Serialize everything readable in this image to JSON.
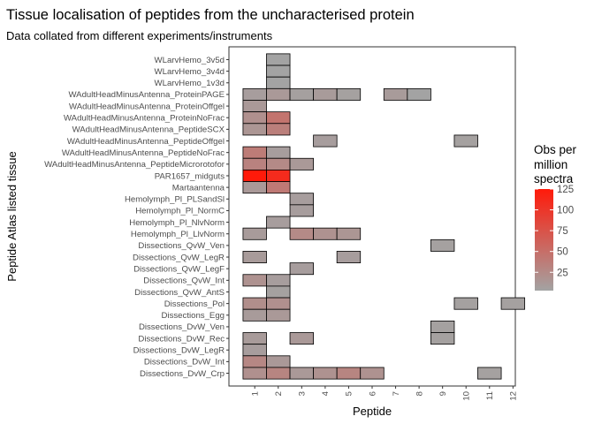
{
  "chart_data": {
    "type": "heatmap",
    "title": "Tissue localisation of peptides from the uncharacterised protein",
    "subtitle": "Data collated from different experiments/instruments",
    "xlabel": "Peptide",
    "ylabel": "Peptide Atlas listed tissue",
    "x_categories": [
      "1",
      "2",
      "3",
      "4",
      "5",
      "6",
      "7",
      "8",
      "9",
      "10",
      "11",
      "12"
    ],
    "y_categories": [
      "WLarvHemo_3v5d",
      "WLarvHemo_3v4d",
      "WLarvHemo_1v3d",
      "WAdultHeadMinusAntenna_ProteinPAGE",
      "WAdultHeadMinusAntenna_ProteinOffgel",
      "WAdultHeadMinusAntenna_ProteinNoFrac",
      "WAdultHeadMinusAntenna_PeptideSCX",
      "WAdultHeadMinusAntenna_PeptideOffgel",
      "WAdultHeadMinusAntenna_PeptideNoFrac",
      "WAdultHeadMinusAntenna_PeptideMicrorotofor",
      "PAR1657_midguts",
      "Martaantenna",
      "Hemolymph_Pl_PLSandSl",
      "Hemolymph_Pl_NormC",
      "Hemolymph_Pl_NlvNorm",
      "Hemolymph_Pl_LlvNorm",
      "Dissections_QvW_Ven",
      "Dissections_QvW_LegR",
      "Dissections_QvW_LegF",
      "Dissections_QvW_Int",
      "Dissections_QvW_AntS",
      "Dissections_Pol",
      "Dissections_Egg",
      "Dissections_DvW_Ven",
      "Dissections_DvW_Rec",
      "Dissections_DvW_LegR",
      "Dissections_DvW_Int",
      "Dissections_DvW_Crp"
    ],
    "cells": [
      {
        "tissue": "WLarvHemo_3v5d",
        "peptide": "2",
        "value": 3
      },
      {
        "tissue": "WLarvHemo_3v4d",
        "peptide": "2",
        "value": 3
      },
      {
        "tissue": "WLarvHemo_1v3d",
        "peptide": "2",
        "value": 3
      },
      {
        "tissue": "WAdultHeadMinusAntenna_ProteinPAGE",
        "peptide": "1",
        "value": 8
      },
      {
        "tissue": "WAdultHeadMinusAntenna_ProteinPAGE",
        "peptide": "2",
        "value": 12
      },
      {
        "tissue": "WAdultHeadMinusAntenna_ProteinPAGE",
        "peptide": "3",
        "value": 6
      },
      {
        "tissue": "WAdultHeadMinusAntenna_ProteinPAGE",
        "peptide": "4",
        "value": 10
      },
      {
        "tissue": "WAdultHeadMinusAntenna_ProteinPAGE",
        "peptide": "5",
        "value": 5
      },
      {
        "tissue": "WAdultHeadMinusAntenna_ProteinPAGE",
        "peptide": "7",
        "value": 10
      },
      {
        "tissue": "WAdultHeadMinusAntenna_ProteinPAGE",
        "peptide": "8",
        "value": 3
      },
      {
        "tissue": "WAdultHeadMinusAntenna_ProteinOffgel",
        "peptide": "1",
        "value": 12
      },
      {
        "tissue": "WAdultHeadMinusAntenna_ProteinNoFrac",
        "peptide": "1",
        "value": 20
      },
      {
        "tissue": "WAdultHeadMinusAntenna_ProteinNoFrac",
        "peptide": "2",
        "value": 45
      },
      {
        "tissue": "WAdultHeadMinusAntenna_PeptideSCX",
        "peptide": "1",
        "value": 15
      },
      {
        "tissue": "WAdultHeadMinusAntenna_PeptideSCX",
        "peptide": "2",
        "value": 35
      },
      {
        "tissue": "WAdultHeadMinusAntenna_PeptideOffgel",
        "peptide": "4",
        "value": 8
      },
      {
        "tissue": "WAdultHeadMinusAntenna_PeptideOffgel",
        "peptide": "10",
        "value": 5
      },
      {
        "tissue": "WAdultHeadMinusAntenna_PeptideNoFrac",
        "peptide": "1",
        "value": 38
      },
      {
        "tissue": "WAdultHeadMinusAntenna_PeptideNoFrac",
        "peptide": "2",
        "value": 8
      },
      {
        "tissue": "WAdultHeadMinusAntenna_PeptideMicrorotofor",
        "peptide": "1",
        "value": 32
      },
      {
        "tissue": "WAdultHeadMinusAntenna_PeptideMicrorotofor",
        "peptide": "2",
        "value": 25
      },
      {
        "tissue": "WAdultHeadMinusAntenna_PeptideMicrorotofor",
        "peptide": "3",
        "value": 12
      },
      {
        "tissue": "PAR1657_midguts",
        "peptide": "1",
        "value": 125
      },
      {
        "tissue": "PAR1657_midguts",
        "peptide": "2",
        "value": 110
      },
      {
        "tissue": "Martaantenna",
        "peptide": "1",
        "value": 12
      },
      {
        "tissue": "Martaantenna",
        "peptide": "2",
        "value": 40
      },
      {
        "tissue": "Hemolymph_Pl_PLSandSl",
        "peptide": "3",
        "value": 8
      },
      {
        "tissue": "Hemolymph_Pl_NormC",
        "peptide": "3",
        "value": 8
      },
      {
        "tissue": "Hemolymph_Pl_NlvNorm",
        "peptide": "2",
        "value": 8
      },
      {
        "tissue": "Hemolymph_Pl_LlvNorm",
        "peptide": "1",
        "value": 10
      },
      {
        "tissue": "Hemolymph_Pl_LlvNorm",
        "peptide": "3",
        "value": 25
      },
      {
        "tissue": "Hemolymph_Pl_LlvNorm",
        "peptide": "4",
        "value": 18
      },
      {
        "tissue": "Hemolymph_Pl_LlvNorm",
        "peptide": "5",
        "value": 15
      },
      {
        "tissue": "Dissections_QvW_Ven",
        "peptide": "9",
        "value": 5
      },
      {
        "tissue": "Dissections_QvW_LegR",
        "peptide": "1",
        "value": 10
      },
      {
        "tissue": "Dissections_QvW_LegR",
        "peptide": "5",
        "value": 8
      },
      {
        "tissue": "Dissections_QvW_LegF",
        "peptide": "3",
        "value": 8
      },
      {
        "tissue": "Dissections_QvW_Int",
        "peptide": "1",
        "value": 18
      },
      {
        "tissue": "Dissections_QvW_Int",
        "peptide": "2",
        "value": 8
      },
      {
        "tissue": "Dissections_QvW_AntS",
        "peptide": "2",
        "value": 5
      },
      {
        "tissue": "Dissections_Pol",
        "peptide": "1",
        "value": 22
      },
      {
        "tissue": "Dissections_Pol",
        "peptide": "2",
        "value": 20
      },
      {
        "tissue": "Dissections_Pol",
        "peptide": "10",
        "value": 5
      },
      {
        "tissue": "Dissections_Pol",
        "peptide": "12",
        "value": 5
      },
      {
        "tissue": "Dissections_Egg",
        "peptide": "1",
        "value": 10
      },
      {
        "tissue": "Dissections_Egg",
        "peptide": "2",
        "value": 12
      },
      {
        "tissue": "Dissections_DvW_Ven",
        "peptide": "9",
        "value": 5
      },
      {
        "tissue": "Dissections_DvW_Rec",
        "peptide": "1",
        "value": 10
      },
      {
        "tissue": "Dissections_DvW_Rec",
        "peptide": "3",
        "value": 12
      },
      {
        "tissue": "Dissections_DvW_Rec",
        "peptide": "9",
        "value": 5
      },
      {
        "tissue": "Dissections_DvW_LegR",
        "peptide": "1",
        "value": 8
      },
      {
        "tissue": "Dissections_DvW_Int",
        "peptide": "1",
        "value": 28
      },
      {
        "tissue": "Dissections_DvW_Int",
        "peptide": "2",
        "value": 12
      },
      {
        "tissue": "Dissections_DvW_Crp",
        "peptide": "1",
        "value": 20
      },
      {
        "tissue": "Dissections_DvW_Crp",
        "peptide": "2",
        "value": 30
      },
      {
        "tissue": "Dissections_DvW_Crp",
        "peptide": "3",
        "value": 12
      },
      {
        "tissue": "Dissections_DvW_Crp",
        "peptide": "4",
        "value": 18
      },
      {
        "tissue": "Dissections_DvW_Crp",
        "peptide": "5",
        "value": 30
      },
      {
        "tissue": "Dissections_DvW_Crp",
        "peptide": "6",
        "value": 18
      },
      {
        "tissue": "Dissections_DvW_Crp",
        "peptide": "11",
        "value": 5
      }
    ],
    "legend": {
      "title_lines": [
        "Obs per",
        "million",
        "spectra"
      ],
      "ticks": [
        25,
        50,
        75,
        100,
        125
      ],
      "range": [
        3,
        125
      ],
      "color_low": "#a3a3a3",
      "color_high": "#ff1a0a",
      "position": "right"
    },
    "grid": false
  }
}
